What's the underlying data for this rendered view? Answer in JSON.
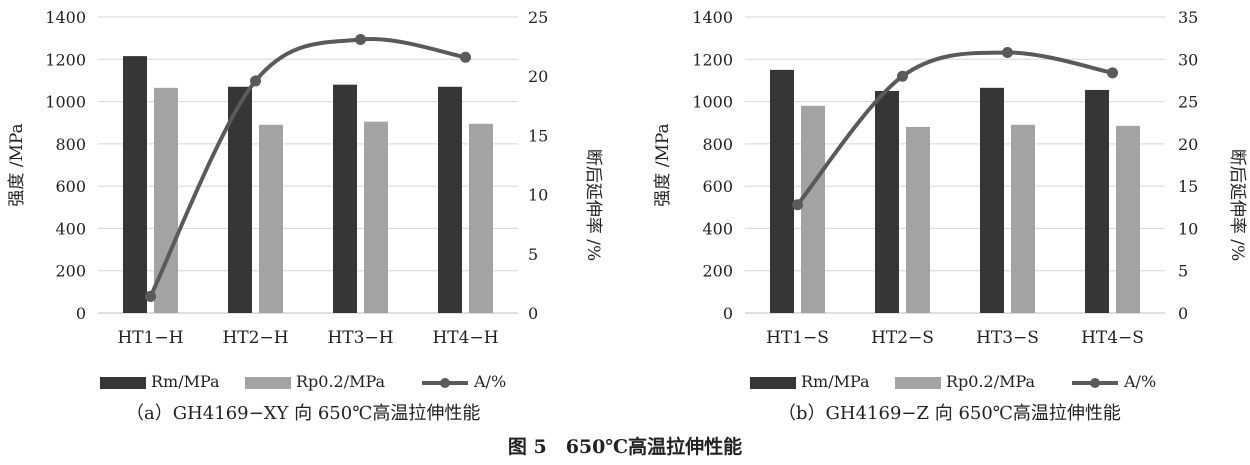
{
  "figure_caption": "图 5　650℃高温拉伸性能",
  "colors": {
    "rm": "#363636",
    "rp": "#a3a3a3",
    "a": "#5a5a5a",
    "grid": "#d6d6d6",
    "axis": "#bfbfbf"
  },
  "chart_data": [
    {
      "type": "bar",
      "caption": "（a）GH4169−XY 向 650℃高温拉伸性能",
      "categories": [
        "HT1−H",
        "HT2−H",
        "HT3−H",
        "HT4−H"
      ],
      "ylabel": "强度 /MPa",
      "y2label": "断后延伸率 /%",
      "ylim": [
        0,
        1400
      ],
      "y2lim": [
        0,
        25
      ],
      "yticks": [
        "0",
        "200",
        "400",
        "600",
        "800",
        "1000",
        "1200",
        "1400"
      ],
      "y2ticks": [
        "0",
        "5",
        "10",
        "15",
        "20",
        "25"
      ],
      "grid": true,
      "legend_position": "bottom",
      "series": [
        {
          "name": "Rm/MPa",
          "kind": "bar",
          "values": [
            1215,
            1070,
            1080,
            1070
          ]
        },
        {
          "name": "Rp0.2/MPa",
          "kind": "bar",
          "values": [
            1065,
            890,
            905,
            895
          ]
        },
        {
          "name": "A/%",
          "kind": "line",
          "axis": "right",
          "values": [
            1.4,
            19.6,
            23.1,
            21.6
          ]
        }
      ]
    },
    {
      "type": "bar",
      "caption": "（b）GH4169−Z 向 650℃高温拉伸性能",
      "categories": [
        "HT1−S",
        "HT2−S",
        "HT3−S",
        "HT4−S"
      ],
      "ylabel": "强度 /MPa",
      "y2label": "断后延伸率 /%",
      "ylim": [
        0,
        1400
      ],
      "y2lim": [
        0,
        35
      ],
      "yticks": [
        "0",
        "200",
        "400",
        "600",
        "800",
        "1000",
        "1200",
        "1400"
      ],
      "y2ticks": [
        "0",
        "5",
        "10",
        "15",
        "20",
        "25",
        "30",
        "35"
      ],
      "grid": true,
      "legend_position": "bottom",
      "series": [
        {
          "name": "Rm/MPa",
          "kind": "bar",
          "values": [
            1150,
            1050,
            1065,
            1055
          ]
        },
        {
          "name": "Rp0.2/MPa",
          "kind": "bar",
          "values": [
            980,
            880,
            890,
            885
          ]
        },
        {
          "name": "A/%",
          "kind": "line",
          "axis": "right",
          "values": [
            12.8,
            28.0,
            30.8,
            28.4
          ]
        }
      ]
    }
  ]
}
